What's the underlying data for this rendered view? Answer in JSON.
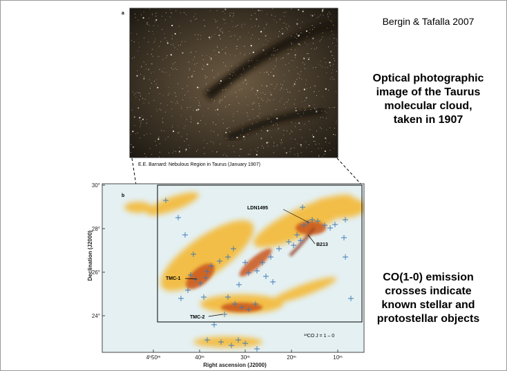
{
  "panel_a": {
    "label": "a",
    "caption": "E.E. Barnard: Nebulous Region in Taurus (January 1907)"
  },
  "citation": "Bergin & Tafalla 2007",
  "description_a": [
    "Optical photographic",
    "image of the Taurus",
    "molecular cloud,",
    "taken in 1907"
  ],
  "panel_b": {
    "label": "b",
    "y_axis_title": "Declination (J2000)",
    "x_axis_title": "Right ascension (J2000)",
    "yticks": [
      "30°",
      "28°",
      "26°",
      "24°"
    ],
    "xticks": [
      "4ʰ50ᵐ",
      "40ᵐ",
      "30ᵐ",
      "20ᵐ",
      "10ᵐ"
    ],
    "annotations": [
      "LDN1495",
      "B213",
      "TMC-1",
      "TMC-2"
    ],
    "legend": "¹³CO J = 1 – 0"
  },
  "description_b": [
    "CO(1-0) emission",
    "crosses indicate",
    "known stellar and",
    "protostellar objects"
  ]
}
